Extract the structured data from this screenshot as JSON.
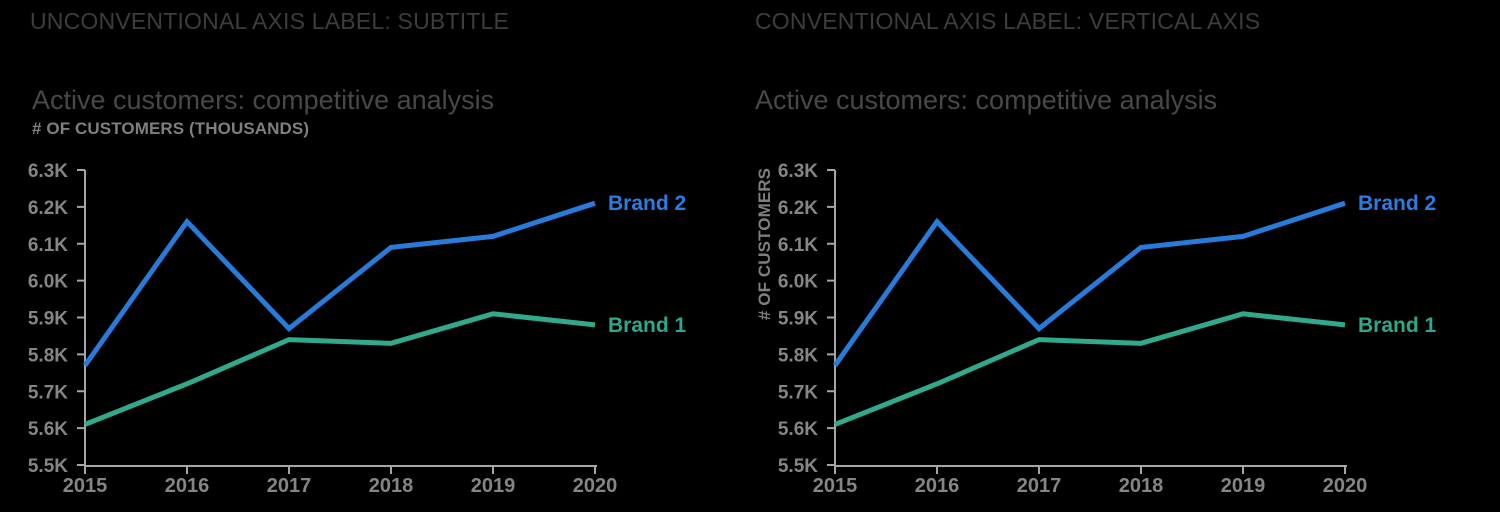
{
  "colors": {
    "background": "#000000",
    "panel_header": "#3d3d3d",
    "chart_title": "#48484a",
    "axis_label": "#7f7f7f",
    "tick_label": "#858585",
    "axis_line": "#a6a6a6",
    "brand2_line": "#287bd8",
    "brand2_label": "#2a7de2",
    "brand1_line": "#30a98c",
    "brand1_label": "#2ca98a"
  },
  "panels": [
    {
      "header": "UNCONVENTIONAL AXIS LABEL: SUBTITLE",
      "title": "Active customers: competitive analysis",
      "axis_subtitle": "# OF CUSTOMERS (THOUSANDS)",
      "vertical_axis_label": ""
    },
    {
      "header": "CONVENTIONAL AXIS LABEL: VERTICAL AXIS",
      "title": "Active customers: competitive analysis",
      "axis_subtitle": "",
      "vertical_axis_label": "# OF CUSTOMERS"
    }
  ],
  "chart_data": [
    {
      "type": "line",
      "title": "Active customers: competitive analysis",
      "ylabel": "# OF CUSTOMERS (THOUSANDS)",
      "ylabel_position": "subtitle",
      "xlabel": "",
      "x": [
        2015,
        2016,
        2017,
        2018,
        2019,
        2020
      ],
      "series": [
        {
          "name": "Brand 2",
          "values": [
            5.77,
            6.16,
            5.87,
            6.09,
            6.12,
            6.21
          ],
          "color": "#287bd8",
          "label_color": "#2a7de2"
        },
        {
          "name": "Brand 1",
          "values": [
            5.61,
            5.72,
            5.84,
            5.83,
            5.91,
            5.88
          ],
          "color": "#30a98c",
          "label_color": "#2ca98a"
        }
      ],
      "unit": "K (thousands)",
      "ylim": [
        5.5,
        6.3
      ],
      "ytick_step": 0.1,
      "ytick_suffix": "K",
      "grid": false,
      "legend_position": "end-of-line labels"
    },
    {
      "type": "line",
      "title": "Active customers: competitive analysis",
      "ylabel": "# OF CUSTOMERS",
      "ylabel_position": "vertical-axis",
      "xlabel": "",
      "x": [
        2015,
        2016,
        2017,
        2018,
        2019,
        2020
      ],
      "series": [
        {
          "name": "Brand 2",
          "values": [
            5.77,
            6.16,
            5.87,
            6.09,
            6.12,
            6.21
          ],
          "color": "#287bd8",
          "label_color": "#2a7de2"
        },
        {
          "name": "Brand 1",
          "values": [
            5.61,
            5.72,
            5.84,
            5.83,
            5.91,
            5.88
          ],
          "color": "#30a98c",
          "label_color": "#2ca98a"
        }
      ],
      "unit": "K (thousands)",
      "ylim": [
        5.5,
        6.3
      ],
      "ytick_step": 0.1,
      "ytick_suffix": "K",
      "grid": false,
      "legend_position": "end-of-line labels"
    }
  ]
}
